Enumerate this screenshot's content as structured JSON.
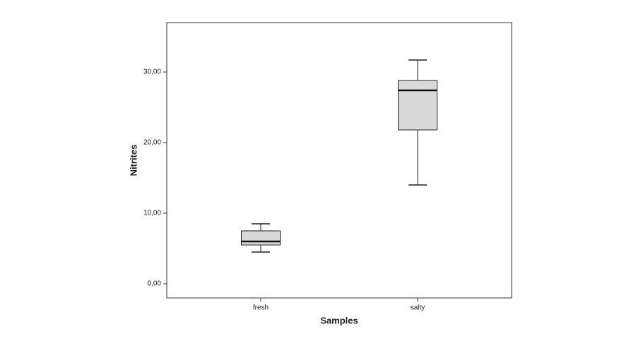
{
  "chart_data": {
    "type": "box",
    "x_label": "Samples",
    "y_label": "Nitrites",
    "categories": [
      "fresh",
      "salty"
    ],
    "boxes": [
      {
        "min": 4.5,
        "q1": 5.5,
        "median": 6.0,
        "q3": 7.5,
        "max": 8.5
      },
      {
        "min": 14.0,
        "q1": 21.8,
        "median": 27.4,
        "q3": 28.8,
        "max": 31.7
      }
    ],
    "color": "#d9d9d9",
    "ylim": [
      -2,
      37
    ],
    "yticks": [
      {
        "value": 0,
        "label": "0,00"
      },
      {
        "value": 10,
        "label": "10,00"
      },
      {
        "value": 20,
        "label": "20,00"
      },
      {
        "value": 30,
        "label": "30,00"
      }
    ]
  }
}
